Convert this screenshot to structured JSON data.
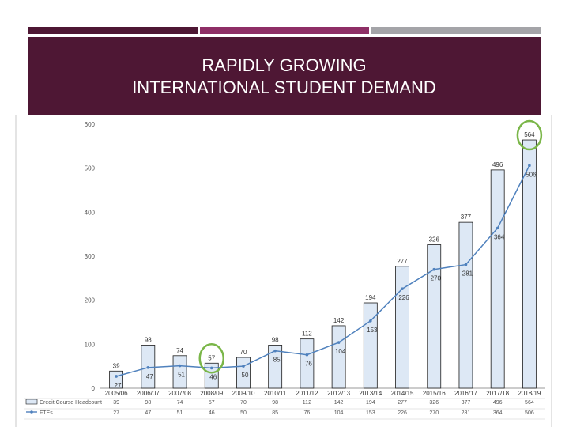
{
  "slide": {
    "title_line1": "RAPIDLY GROWING",
    "title_line2": "INTERNATIONAL STUDENT DEMAND",
    "colors": {
      "banner": "#4e1734",
      "accent": "#8e2f66",
      "gray": "#a4a4a8",
      "highlight": "#7ab648"
    }
  },
  "chart_data": {
    "type": "bar",
    "title": "",
    "categories": [
      "2005/06",
      "2006/07",
      "2007/08",
      "2008/09",
      "2009/10",
      "2010/11",
      "2011/12",
      "2012/13",
      "2013/14",
      "2014/15",
      "2015/16",
      "2016/17",
      "2017/18",
      "2018/19"
    ],
    "ylim": [
      0,
      600
    ],
    "yticks": [
      0,
      100,
      200,
      300,
      400,
      500,
      600
    ],
    "grid": false,
    "legend": "bottom-left table",
    "series": [
      {
        "name": "Credit Course Headcount",
        "type": "bar",
        "values": [
          39,
          98,
          74,
          57,
          70,
          98,
          112,
          142,
          194,
          277,
          326,
          377,
          496,
          564
        ]
      },
      {
        "name": "FTEs",
        "type": "line",
        "values": [
          27,
          47,
          51,
          46,
          50,
          85,
          76,
          104,
          153,
          226,
          270,
          281,
          364,
          506
        ]
      }
    ],
    "highlighted_categories": [
      "2008/09",
      "2018/19"
    ]
  }
}
